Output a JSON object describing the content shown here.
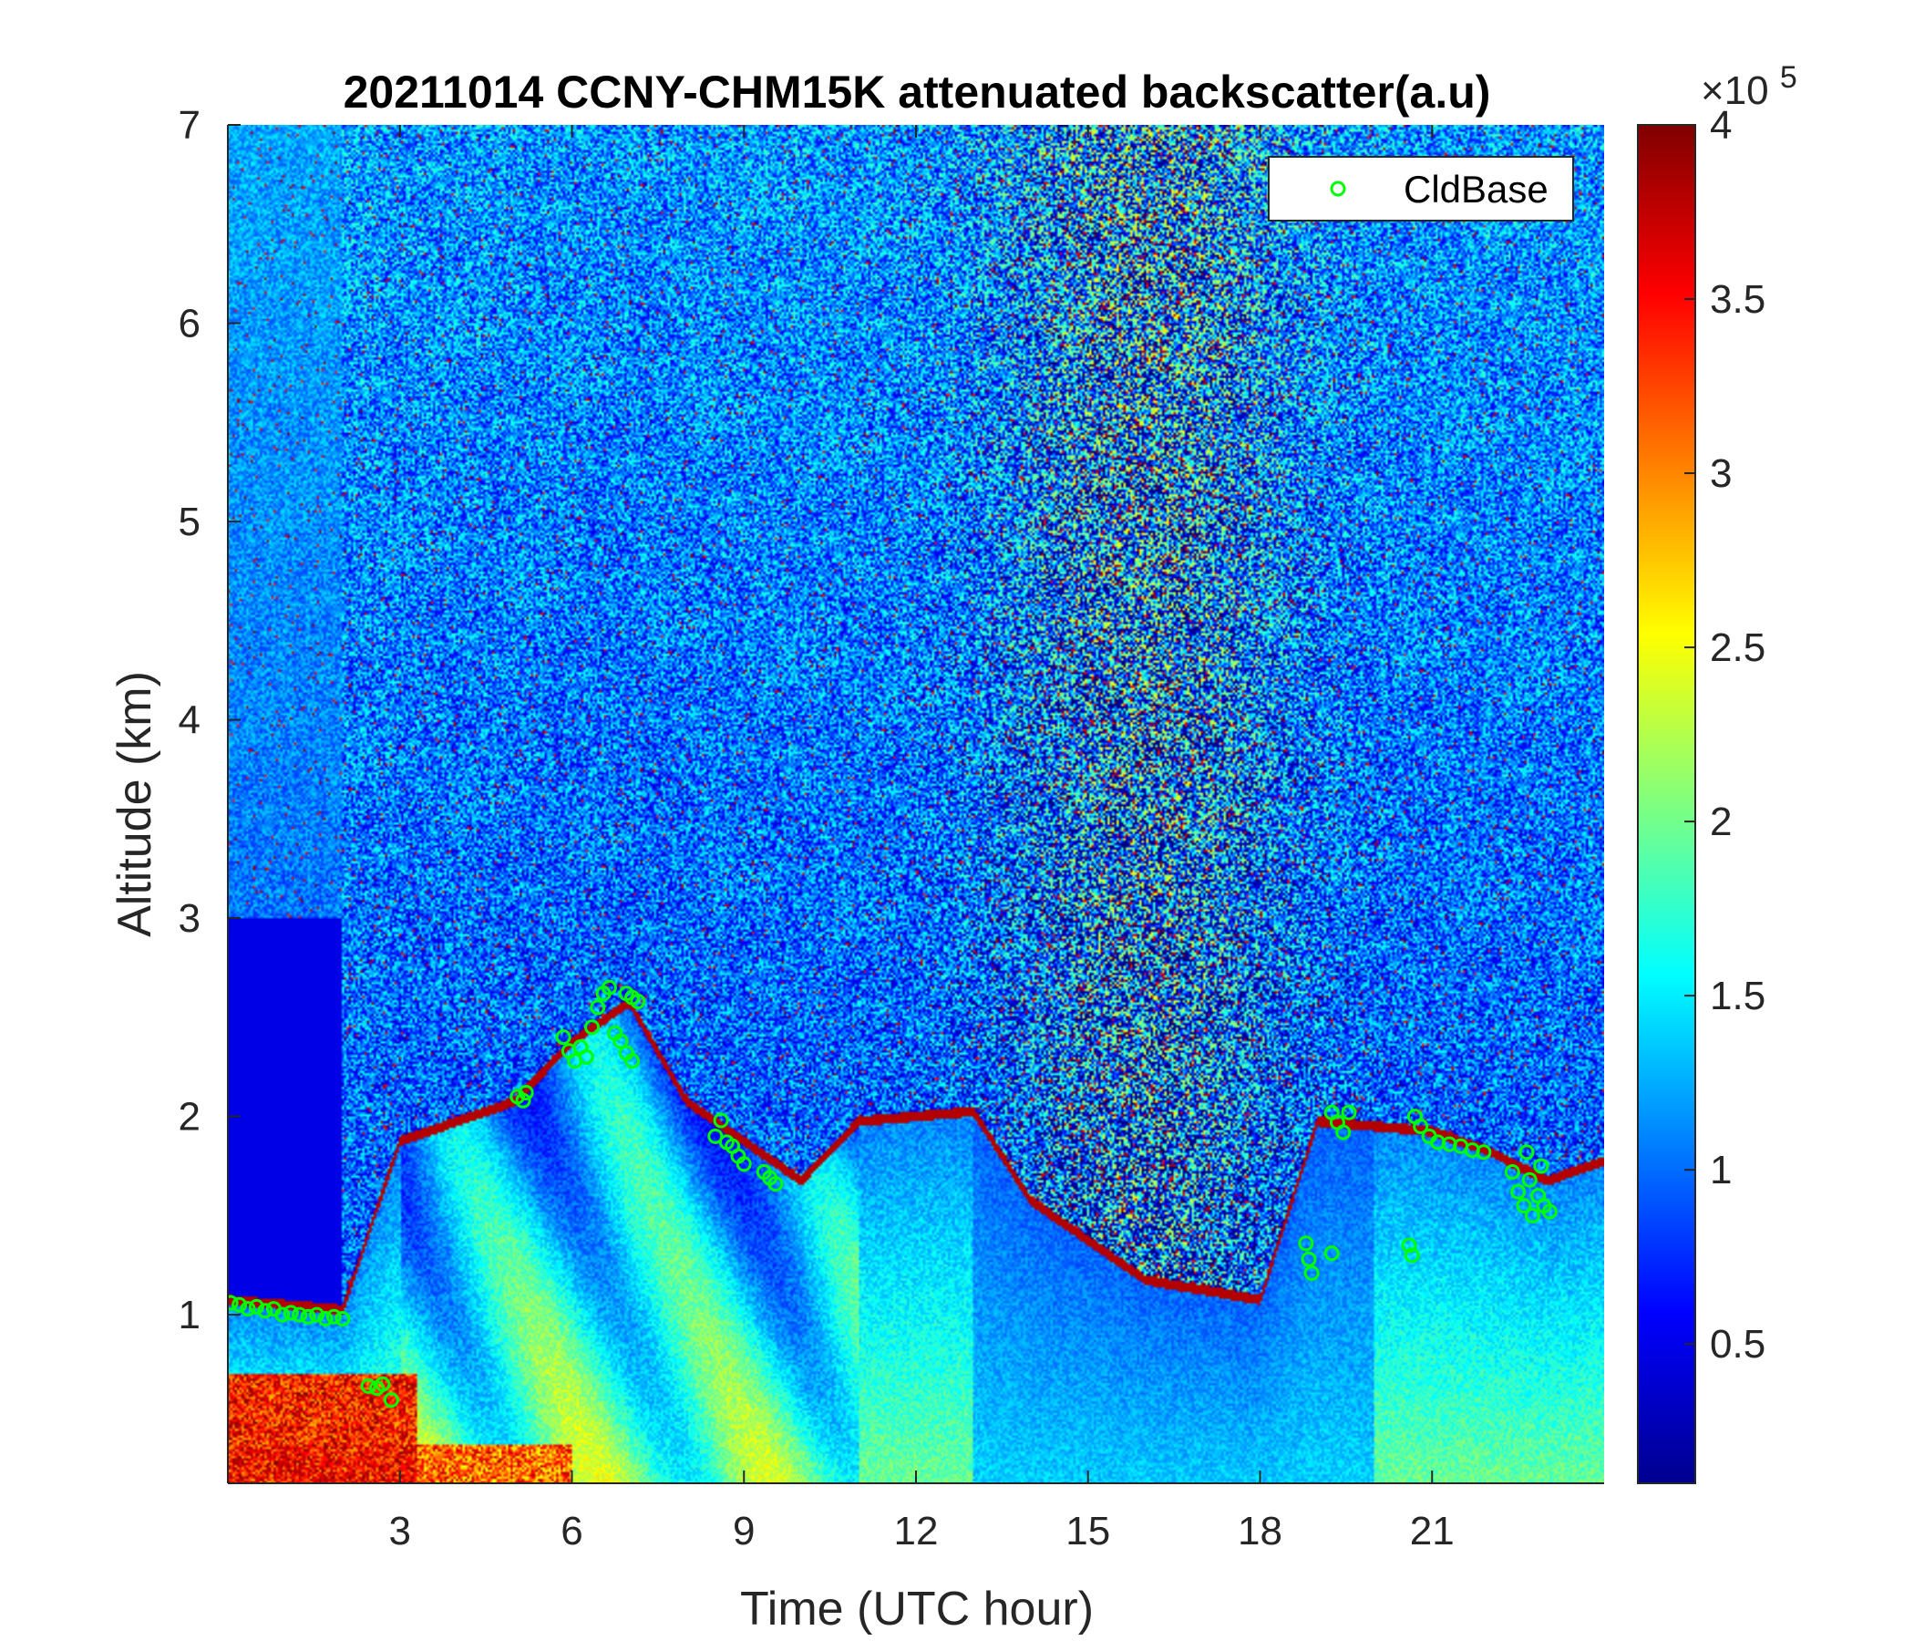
{
  "chart_data": {
    "type": "heatmap",
    "title": "20211014 CCNY-CHM15K attenuated backscatter(a.u)",
    "xlabel": "Time (UTC hour)",
    "ylabel": "Altitude (km)",
    "xlim": [
      0,
      24
    ],
    "ylim": [
      0.15,
      7
    ],
    "xticks": [
      "3",
      "6",
      "9",
      "12",
      "15",
      "18",
      "21"
    ],
    "yticks": [
      "1",
      "2",
      "3",
      "4",
      "5",
      "6",
      "7"
    ],
    "colormap": "jet",
    "colorbar": {
      "range": [
        0.1,
        4
      ],
      "ticks": [
        "0.5",
        "1",
        "1.5",
        "2",
        "2.5",
        "3",
        "3.5",
        "4"
      ],
      "multiplier_base": "×10",
      "multiplier_exp": "5"
    },
    "legend": {
      "location": "top-right",
      "entries": [
        "CldBase"
      ],
      "marker": "circle",
      "color": "#00ff00"
    },
    "series": [
      {
        "name": "CldBase",
        "marker": "circle",
        "color": "#00ff00",
        "points": [
          [
            0.05,
            1.06
          ],
          [
            0.2,
            1.05
          ],
          [
            0.35,
            1.03
          ],
          [
            0.5,
            1.04
          ],
          [
            0.65,
            1.02
          ],
          [
            0.8,
            1.03
          ],
          [
            0.95,
            1.0
          ],
          [
            1.1,
            1.01
          ],
          [
            1.25,
            1.0
          ],
          [
            1.4,
            0.99
          ],
          [
            1.55,
            1.0
          ],
          [
            1.7,
            0.98
          ],
          [
            1.85,
            0.99
          ],
          [
            2.0,
            0.98
          ],
          [
            2.45,
            0.64
          ],
          [
            2.6,
            0.63
          ],
          [
            2.7,
            0.65
          ],
          [
            2.85,
            0.57
          ],
          [
            5.05,
            2.1
          ],
          [
            5.15,
            2.08
          ],
          [
            5.2,
            2.12
          ],
          [
            5.85,
            2.4
          ],
          [
            5.95,
            2.33
          ],
          [
            6.05,
            2.28
          ],
          [
            6.15,
            2.35
          ],
          [
            6.25,
            2.3
          ],
          [
            6.35,
            2.45
          ],
          [
            6.45,
            2.55
          ],
          [
            6.55,
            2.62
          ],
          [
            6.65,
            2.65
          ],
          [
            6.75,
            2.42
          ],
          [
            6.85,
            2.38
          ],
          [
            6.95,
            2.32
          ],
          [
            7.05,
            2.28
          ],
          [
            6.95,
            2.62
          ],
          [
            7.05,
            2.6
          ],
          [
            7.15,
            2.58
          ],
          [
            8.5,
            1.9
          ],
          [
            8.6,
            1.98
          ],
          [
            8.7,
            1.87
          ],
          [
            8.8,
            1.85
          ],
          [
            8.9,
            1.8
          ],
          [
            9.0,
            1.76
          ],
          [
            9.35,
            1.72
          ],
          [
            9.45,
            1.69
          ],
          [
            9.55,
            1.66
          ],
          [
            18.8,
            1.36
          ],
          [
            18.85,
            1.28
          ],
          [
            18.9,
            1.21
          ],
          [
            19.25,
            1.31
          ],
          [
            19.25,
            2.02
          ],
          [
            19.35,
            1.97
          ],
          [
            19.45,
            1.92
          ],
          [
            19.55,
            2.02
          ],
          [
            20.6,
            1.35
          ],
          [
            20.65,
            1.3
          ],
          [
            20.7,
            2.0
          ],
          [
            20.8,
            1.95
          ],
          [
            20.95,
            1.9
          ],
          [
            21.1,
            1.87
          ],
          [
            21.3,
            1.86
          ],
          [
            21.5,
            1.85
          ],
          [
            21.7,
            1.83
          ],
          [
            21.9,
            1.82
          ],
          [
            22.4,
            1.72
          ],
          [
            22.5,
            1.62
          ],
          [
            22.6,
            1.55
          ],
          [
            22.7,
            1.68
          ],
          [
            22.75,
            1.5
          ],
          [
            22.85,
            1.6
          ],
          [
            22.95,
            1.55
          ],
          [
            23.05,
            1.52
          ],
          [
            22.65,
            1.82
          ],
          [
            22.9,
            1.75
          ]
        ]
      }
    ]
  }
}
